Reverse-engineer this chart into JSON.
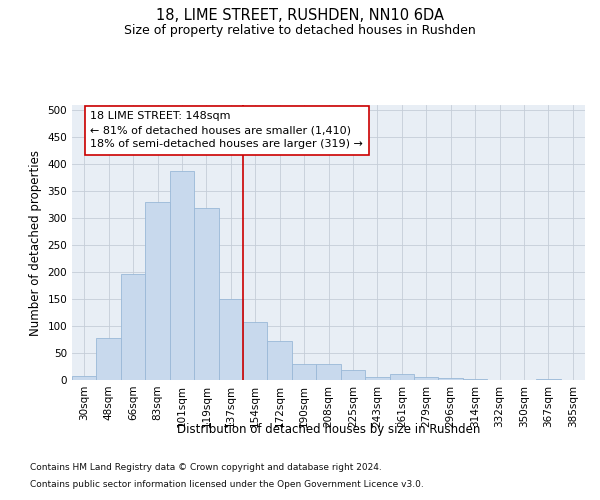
{
  "title": "18, LIME STREET, RUSHDEN, NN10 6DA",
  "subtitle": "Size of property relative to detached houses in Rushden",
  "xlabel": "Distribution of detached houses by size in Rushden",
  "ylabel": "Number of detached properties",
  "categories": [
    "30sqm",
    "48sqm",
    "66sqm",
    "83sqm",
    "101sqm",
    "119sqm",
    "137sqm",
    "154sqm",
    "172sqm",
    "190sqm",
    "208sqm",
    "225sqm",
    "243sqm",
    "261sqm",
    "279sqm",
    "296sqm",
    "314sqm",
    "332sqm",
    "350sqm",
    "367sqm",
    "385sqm"
  ],
  "values": [
    8,
    77,
    197,
    330,
    387,
    319,
    150,
    107,
    73,
    29,
    29,
    18,
    6,
    12,
    5,
    4,
    2,
    0,
    0,
    2,
    0
  ],
  "bar_color": "#c8d9ed",
  "bar_edge_color": "#9ab8d8",
  "vline_pos": 6.5,
  "vline_color": "#cc0000",
  "annotation_text": "18 LIME STREET: 148sqm\n← 81% of detached houses are smaller (1,410)\n18% of semi-detached houses are larger (319) →",
  "ylim": [
    0,
    510
  ],
  "yticks": [
    0,
    50,
    100,
    150,
    200,
    250,
    300,
    350,
    400,
    450,
    500
  ],
  "footer1": "Contains HM Land Registry data © Crown copyright and database right 2024.",
  "footer2": "Contains public sector information licensed under the Open Government Licence v3.0.",
  "plot_bg_color": "#e8eef5",
  "grid_color": "#c5cdd8",
  "title_fontsize": 10.5,
  "subtitle_fontsize": 9,
  "axis_label_fontsize": 8.5,
  "tick_fontsize": 7.5,
  "annotation_fontsize": 8,
  "footer_fontsize": 6.5
}
